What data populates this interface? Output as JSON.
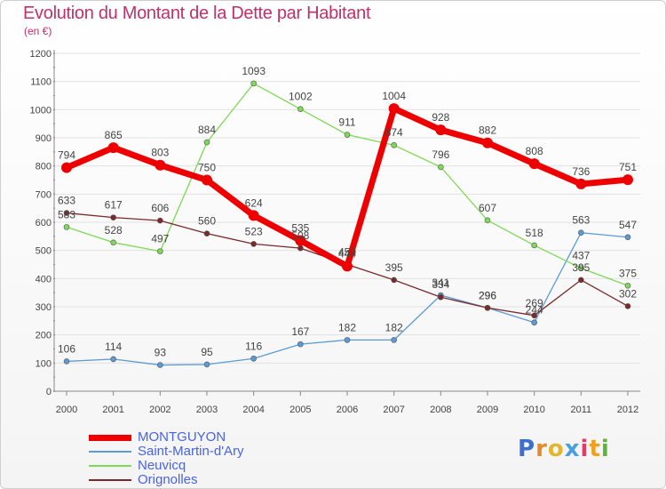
{
  "header": {
    "title": "Evolution du Montant de la Dette par Habitant",
    "unit": "(en €)"
  },
  "logo": {
    "text": "Proxiti",
    "letter_colors": [
      "#3a6fd0",
      "#e8882a",
      "#e2b72c",
      "#4a9fe0",
      "#e23a6a",
      "#f0a020",
      "#5fb33c"
    ]
  },
  "chart_data": {
    "type": "line",
    "title": "Evolution du Montant de la Dette par Habitant",
    "ylabel": "(en €)",
    "xlabel": "",
    "x": [
      2000,
      2001,
      2002,
      2003,
      2004,
      2005,
      2006,
      2007,
      2008,
      2009,
      2010,
      2011,
      2012
    ],
    "ylim": [
      0,
      1200
    ],
    "yticks": [
      0,
      100,
      200,
      300,
      400,
      500,
      600,
      700,
      800,
      900,
      1000,
      1100,
      1200
    ],
    "grid": "horizontal",
    "legend_position": "bottom-left",
    "series": [
      {
        "name": "MONTGUYON",
        "color": "#ee0000",
        "values": [
          794,
          865,
          803,
          750,
          624,
          535,
          444,
          1004,
          928,
          882,
          808,
          736,
          751
        ],
        "labels": [
          "794",
          "865",
          "803",
          "750",
          "624",
          "535",
          "444",
          "1004",
          "928",
          "882",
          "808",
          "736",
          "751"
        ]
      },
      {
        "name": "Saint-Martin-d'Ary",
        "color": "#5b9bd5",
        "values": [
          106,
          114,
          93,
          95,
          116,
          167,
          182,
          182,
          341,
          296,
          244,
          563,
          547
        ],
        "labels": [
          "106",
          "114",
          "93",
          "95",
          "116",
          "167",
          "182",
          "182",
          "341",
          "296",
          "244",
          "563",
          "547"
        ]
      },
      {
        "name": "Neuvicq",
        "color": "#7ed957",
        "values": [
          583,
          528,
          497,
          884,
          1093,
          1002,
          911,
          874,
          796,
          607,
          518,
          437,
          375
        ],
        "labels": [
          "583",
          "528",
          "497",
          "884",
          "1093",
          "1002",
          "911",
          "874",
          "796",
          "607",
          "518",
          "437",
          "375"
        ]
      },
      {
        "name": "Orignolles",
        "color": "#7a2a2a",
        "values": [
          633,
          617,
          606,
          560,
          523,
          508,
          450,
          395,
          334,
          296,
          269,
          395,
          302
        ],
        "labels": [
          "633",
          "617",
          "606",
          "560",
          "523",
          "508",
          "450",
          "395",
          "334",
          "296",
          "269",
          "395",
          "302"
        ]
      }
    ]
  }
}
